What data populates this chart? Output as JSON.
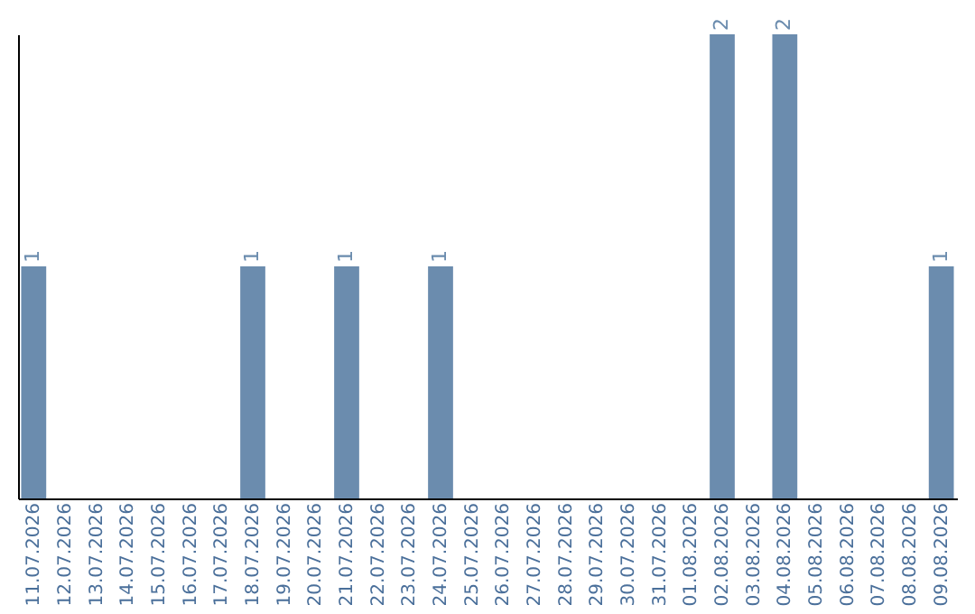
{
  "chart_data": {
    "type": "bar",
    "categories": [
      "11.07.2026",
      "12.07.2026",
      "13.07.2026",
      "14.07.2026",
      "15.07.2026",
      "16.07.2026",
      "17.07.2026",
      "18.07.2026",
      "19.07.2026",
      "20.07.2026",
      "21.07.2026",
      "22.07.2026",
      "23.07.2026",
      "24.07.2026",
      "25.07.2026",
      "26.07.2026",
      "27.07.2026",
      "28.07.2026",
      "29.07.2026",
      "30.07.2026",
      "31.07.2026",
      "01.08.2026",
      "02.08.2026",
      "03.08.2026",
      "04.08.2026",
      "05.08.2026",
      "06.08.2026",
      "07.08.2026",
      "08.08.2026",
      "09.08.2026"
    ],
    "values": [
      1,
      0,
      0,
      0,
      0,
      0,
      0,
      1,
      0,
      0,
      1,
      0,
      0,
      1,
      0,
      0,
      0,
      0,
      0,
      0,
      0,
      0,
      2,
      0,
      2,
      0,
      0,
      0,
      0,
      1
    ],
    "value_labels": [
      "1",
      null,
      null,
      null,
      null,
      null,
      null,
      "1",
      null,
      null,
      "1",
      null,
      null,
      "1",
      null,
      null,
      null,
      null,
      null,
      null,
      null,
      null,
      "2",
      null,
      "2",
      null,
      null,
      null,
      null,
      "1"
    ],
    "color": "#6b8cae",
    "ylim": [
      0,
      2
    ],
    "tick_labels": "x",
    "grid": false
  }
}
